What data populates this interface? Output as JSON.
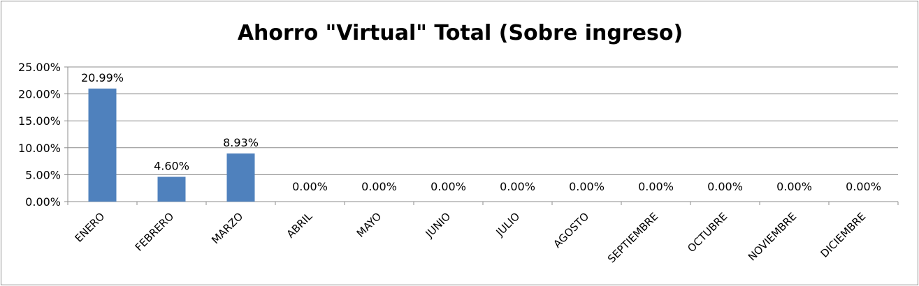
{
  "chart_data": {
    "type": "bar",
    "title": "Ahorro \"Virtual\" Total (Sobre ingreso)",
    "xlabel": "",
    "ylabel": "",
    "ylim": [
      0,
      25
    ],
    "yticks": [
      "0.00%",
      "5.00%",
      "10.00%",
      "15.00%",
      "20.00%",
      "25.00%"
    ],
    "grid": true,
    "legend": "none",
    "bar_color": "#4f81bd",
    "categories": [
      "ENERO",
      "FEBRERO",
      "MARZO",
      "ABRIL",
      "MAYO",
      "JUNIO",
      "JULIO",
      "AGOSTO",
      "SEPTIEMBRE",
      "OCTUBRE",
      "NOVIEMBRE",
      "DICIEMBRE"
    ],
    "values": [
      20.99,
      4.6,
      8.93,
      0,
      0,
      0,
      0,
      0,
      0,
      0,
      0,
      0
    ],
    "data_labels": [
      "20.99%",
      "4.60%",
      "8.93%",
      "0.00%",
      "0.00%",
      "0.00%",
      "0.00%",
      "0.00%",
      "0.00%",
      "0.00%",
      "0.00%",
      "0.00%"
    ]
  }
}
